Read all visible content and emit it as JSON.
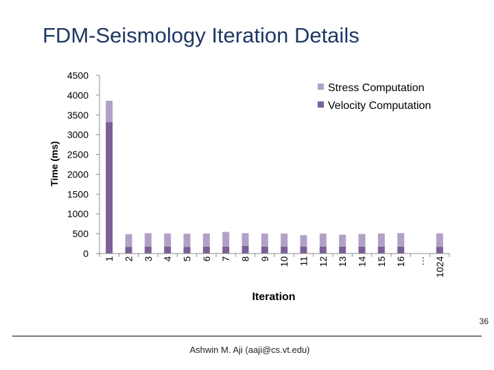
{
  "slide": {
    "title": "FDM-Seismology Iteration Details",
    "slide_number": "36",
    "author": "Ashwin M. Aji (aaji@cs.vt.edu)"
  },
  "chart_data": {
    "type": "bar",
    "stacked": true,
    "title": "",
    "xlabel": "Iteration",
    "ylabel": "Time (ms)",
    "ylim": [
      0,
      4500
    ],
    "yticks": [
      0,
      500,
      1000,
      1500,
      2000,
      2500,
      3000,
      3500,
      4000,
      4500
    ],
    "grid": false,
    "legend_position": "top-right",
    "categories": [
      "1",
      "2",
      "3",
      "4",
      "5",
      "6",
      "7",
      "8",
      "9",
      "10",
      "11",
      "12",
      "13",
      "14",
      "15",
      "16",
      "…",
      "1024"
    ],
    "series": [
      {
        "name": "Velocity Computation",
        "color": "#7b5f96",
        "values": [
          3320,
          170,
          175,
          175,
          170,
          175,
          175,
          195,
          175,
          175,
          175,
          175,
          175,
          175,
          175,
          175,
          null,
          170
        ]
      },
      {
        "name": "Stress Computation",
        "color": "#b2a1c7",
        "values": [
          540,
          320,
          340,
          330,
          330,
          330,
          370,
          320,
          330,
          330,
          290,
          330,
          300,
          320,
          330,
          340,
          null,
          340
        ]
      }
    ]
  }
}
